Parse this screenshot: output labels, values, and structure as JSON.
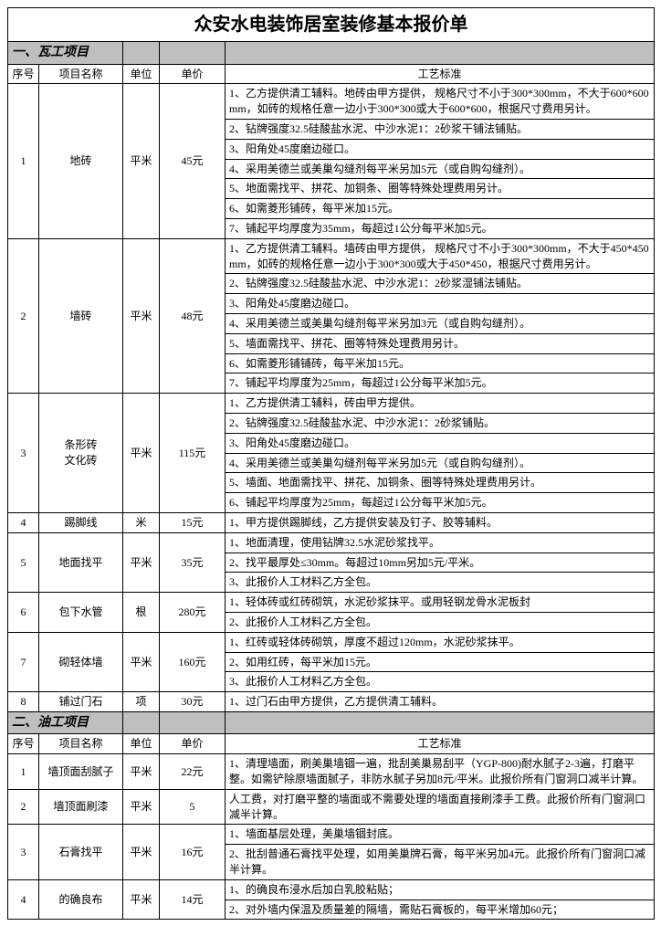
{
  "title": "众安水电装饰居室装修基本报价单",
  "section1": {
    "name": "一、瓦工项目",
    "headers": {
      "seq": "序号",
      "item": "项目名称",
      "unit": "单位",
      "price": "单价",
      "spec": "工艺标准"
    }
  },
  "r1": {
    "seq": "1",
    "item": "地砖",
    "unit": "平米",
    "price": "45元",
    "s1": "1、乙方提供清工辅料。地砖由甲方提供， 规格尺寸不小于300*300mm，不大于600*600mm，如砖的规格任意一边小于300*300或大于600*600，根据尺寸费用另计。",
    "s2": "2、钻牌强度32.5硅酸盐水泥、中沙水泥1：2砂浆干铺法铺贴。",
    "s3": "3、阳角处45度磨边碰口。",
    "s4": "4、采用美德兰或美巢勾缝剂每平米另加5元（或自购勾缝剂）。",
    "s5": "5、地面需找平、拼花、加铜条、圈等特殊处理费用另计。",
    "s6": "6、如需菱形铺砖，每平米加15元。",
    "s7": "7、铺起平均厚度为35mm，每超过1公分每平米加5元。"
  },
  "r2": {
    "seq": "2",
    "item": "墙砖",
    "unit": "平米",
    "price": "48元",
    "s1": "1、乙方提供清工辅料。墙砖由甲方提供， 规格尺寸不小于300*300mm，不大于450*450mm，如砖的规格任意一边小于300*300或大于450*450，根据尺寸费用另计。",
    "s2": "2、钻牌强度32.5硅酸盐水泥、中沙水泥1：2砂浆湿铺法铺贴。",
    "s3": "3、阳角处45度磨边碰口。",
    "s4": "4、采用美德兰或美巢勾缝剂每平米另加3元（或自购勾缝剂）。",
    "s5": "5、墙面需找平、拼花、圈等特殊处理费用另计。",
    "s6": "6、如需菱形铺铺砖，每平米加15元。",
    "s7": "7、铺起平均厚度为25mm，每超过1公分每平米加5元。"
  },
  "r3": {
    "seq": "3",
    "item": "条形砖\n文化砖",
    "unit": "平米",
    "price": "115元",
    "s1": "1、乙方提供清工辅料，砖由甲方提供。",
    "s2": "2、钻牌强度32.5硅酸盐水泥、中沙水泥1：2砂浆铺贴。",
    "s3": "3、阳角处45度磨边碰口。",
    "s4": "4、采用美德兰或美巢勾缝剂每平米另加5元（或自购勾缝剂）。",
    "s5": "5、墙面、地面需找平、拼花、加铜条、圈等特殊处理费用另计。",
    "s6": "6、铺起平均厚度为25mm，每超过1公分每平米加5元。"
  },
  "r4": {
    "seq": "4",
    "item": "踢脚线",
    "unit": "米",
    "price": "15元",
    "s1": "1、甲方提供踢脚线，乙方提供安装及钉子、胶等辅料。"
  },
  "r5": {
    "seq": "5",
    "item": "地面找平",
    "unit": "平米",
    "price": "35元",
    "s1": "1、地面清理，使用钻牌32.5水泥砂浆找平。",
    "s2": "2、找平最厚处≤30mm。每超过10mm另加5元/平米。",
    "s3": "3、此报价人工材料乙方全包。"
  },
  "r6": {
    "seq": "6",
    "item": "包下水管",
    "unit": "根",
    "price": "280元",
    "s1": "1、轻体砖或红砖砌筑，水泥砂浆抹平。或用轻钢龙骨水泥板封",
    "s2": "2、此报价人工材料乙方全包。"
  },
  "r7": {
    "seq": "7",
    "item": "砌轻体墙",
    "unit": "平米",
    "price": "160元",
    "s1": "1、红砖或轻体砖砌筑，厚度不超过120mm，水泥砂浆抹平。",
    "s2": "2、如用红砖，每平米加15元。",
    "s3": "3、此报价人工材料乙方全包。"
  },
  "r8": {
    "seq": "8",
    "item": "铺过门石",
    "unit": "项",
    "price": "30元",
    "s1": "1、过门石由甲方提供，乙方提供清工辅料。"
  },
  "section2": {
    "name": "二、油工项目",
    "headers": {
      "seq": "序号",
      "item": "项目名称",
      "unit": "单位",
      "price": "单价",
      "spec": "工艺标准"
    }
  },
  "p1": {
    "seq": "1",
    "item": "墙顶面刮腻子",
    "unit": "平米",
    "price": "22元",
    "s1": "1、清理墙面，刷美巢墙锢一遍，批刮美巢易刮平（YGP-800)耐水腻子2-3遍，打磨平整。如需铲除原墙面腻子，非防水腻子另加8元/平米。此报价所有门窗洞口减半计算。"
  },
  "p2": {
    "seq": "2",
    "item": "墙顶面刷漆",
    "unit": "平米",
    "price": "5",
    "s1": "人工费，对打磨平整的墙面或不需要处理的墙面直接刷漆手工费。此报价所有门窗洞口减半计算。"
  },
  "p3": {
    "seq": "3",
    "item": "石膏找平",
    "unit": "平米",
    "price": "16元",
    "s1": "1、墙面基层处理，美巢墙锢封底。",
    "s2": "2、批刮普通石膏找平处理，如用美巢牌石膏，每平米另加4元。此报价所有门窗洞口减半计算。"
  },
  "p4": {
    "seq": "4",
    "item": "的确良布",
    "unit": "平米",
    "price": "14元",
    "s1": "1、的确良布浸水后加白乳胶粘贴；",
    "s2": "2、对外墙内保温及质量差的隔墙，需贴石膏板的，每平米增加60元；"
  }
}
